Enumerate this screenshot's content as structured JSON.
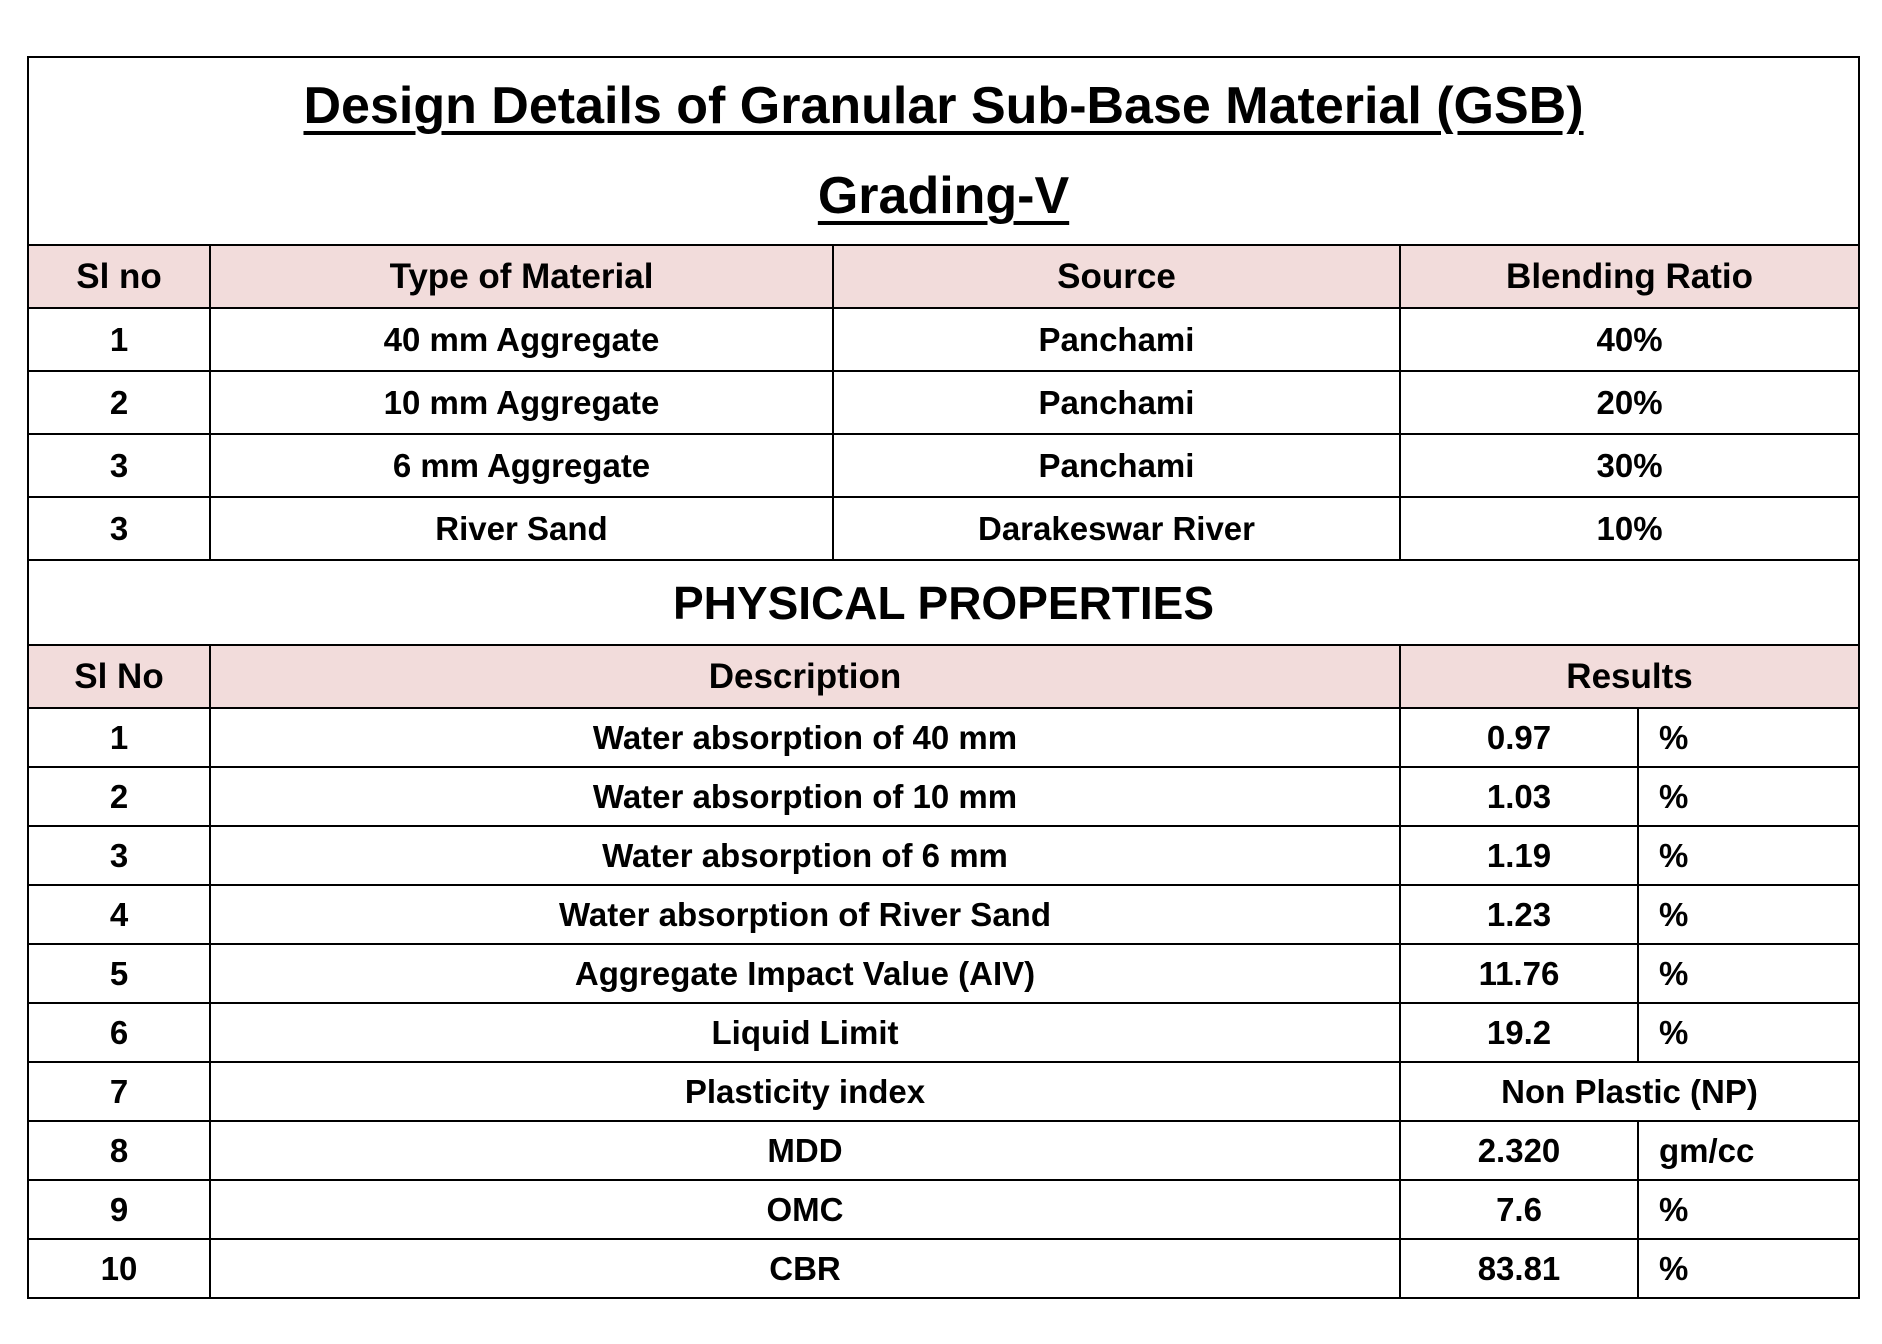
{
  "title": "Design Details of Granular Sub-Base Material (GSB)",
  "subtitle": "Grading-V",
  "blend_table": {
    "headers": [
      "Sl no",
      "Type of Material",
      "Source",
      "Blending Ratio"
    ],
    "rows": [
      [
        "1",
        "40 mm Aggregate",
        "Panchami",
        "40%"
      ],
      [
        "2",
        "10 mm Aggregate",
        "Panchami",
        "20%"
      ],
      [
        "3",
        "6 mm Aggregate",
        "Panchami",
        "30%"
      ],
      [
        "3",
        "River Sand",
        "Darakeswar River",
        "10%"
      ]
    ]
  },
  "physical": {
    "heading": "PHYSICAL PROPERTIES",
    "headers": [
      "Sl No",
      "Description",
      "Results"
    ],
    "rows": [
      [
        "1",
        "Water absorption of 40 mm",
        "0.97",
        "%"
      ],
      [
        "2",
        "Water absorption of 10 mm",
        "1.03",
        "%"
      ],
      [
        "3",
        "Water absorption of 6 mm",
        "1.19",
        "%"
      ],
      [
        "4",
        "Water absorption of River Sand",
        "1.23",
        "%"
      ],
      [
        "5",
        "Aggregate Impact Value (AIV)",
        "11.76",
        "%"
      ],
      [
        "6",
        "Liquid Limit",
        "19.2",
        "%"
      ],
      [
        "7",
        "Plasticity index",
        "Non Plastic (NP)",
        ""
      ],
      [
        "8",
        "MDD",
        "2.320",
        "gm/cc"
      ],
      [
        "9",
        "OMC",
        "7.6",
        "%"
      ],
      [
        "10",
        "CBR",
        "83.81",
        "%"
      ]
    ]
  },
  "colors": {
    "header_bg": "#f2dcdb",
    "border": "#000000"
  }
}
